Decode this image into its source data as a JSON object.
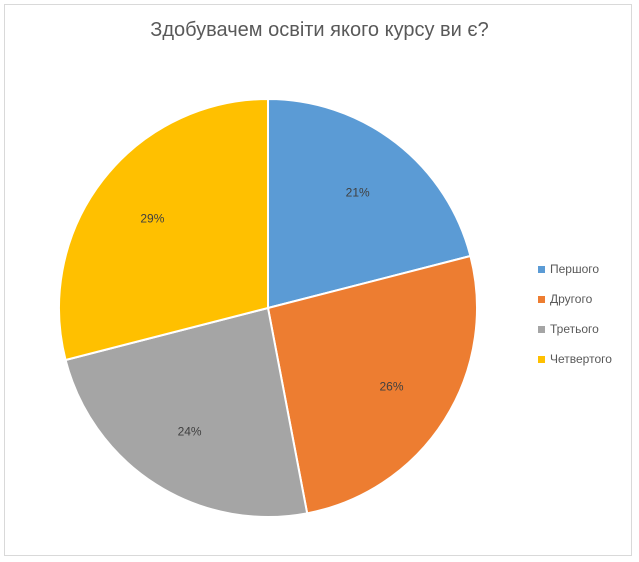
{
  "chart_data": {
    "type": "pie",
    "title": "Здобувачем освіти якого курсу ви є?",
    "categories": [
      "Першого",
      "Другого",
      "Третього",
      "Четвертого"
    ],
    "values": [
      21,
      26,
      24,
      29
    ],
    "labels": [
      "21%",
      "26%",
      "24%",
      "29%"
    ],
    "colors": [
      "#5B9BD5",
      "#ED7D31",
      "#A5A5A5",
      "#FFC000"
    ],
    "legend_position": "right"
  }
}
